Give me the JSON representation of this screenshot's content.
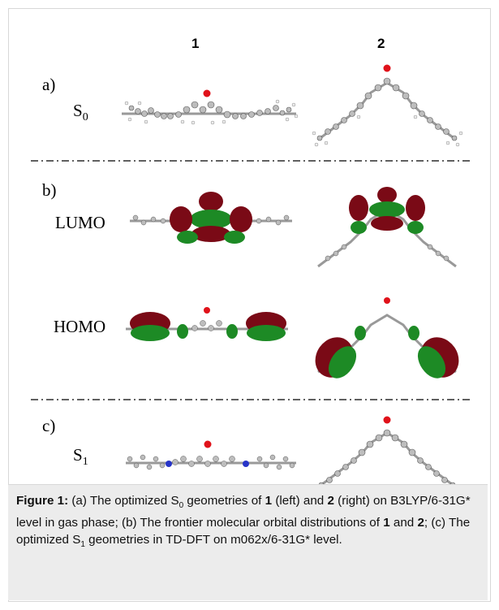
{
  "columns": {
    "col1": "1",
    "col2": "2"
  },
  "panels": {
    "a_label": "a)",
    "b_label": "b)",
    "c_label": "c)"
  },
  "states": {
    "s0_main": "S",
    "s0_sub": "0",
    "lumo": "LUMO",
    "homo": "HOMO",
    "s1_main": "S",
    "s1_sub": "1"
  },
  "caption": {
    "label": "Figure 1:",
    "part1": " (a) The optimized S",
    "sub0": "0",
    "part2": " geometries of ",
    "b1": "1",
    "part3": " (left) and ",
    "b2": "2",
    "part4": " (right) on B3LYP/6-31G* level in gas phase; (b) The frontier molecular orbital distributions of ",
    "b3": "1",
    "part5": " and ",
    "b4": "2",
    "part6": "; (c) The optimized S",
    "sub1": "1",
    "part7": " geometries in TD-DFT on m062x/6-31G* level."
  },
  "colors": {
    "orbital_red": "#7a0a16",
    "orbital_green": "#1d8a25",
    "oxygen": "#e0121a",
    "nitrogen": "#2734c8",
    "carbon": "#8e8e8e",
    "hydrogen": "#e6e6e6",
    "caption_bg": "#ececec"
  }
}
